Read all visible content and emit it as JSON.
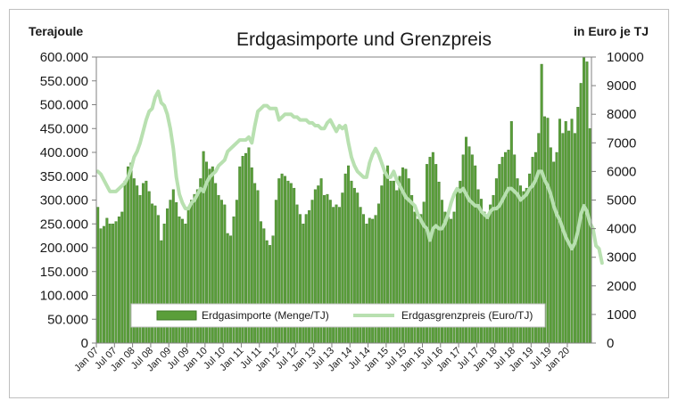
{
  "chart_data": {
    "type": "bar",
    "title": "Erdgasimporte und Grenzpreis",
    "ylabel_left": "Terajoule",
    "ylabel_right": "in Euro je TJ",
    "ylim_left": [
      0,
      600000
    ],
    "ylim_right": [
      0,
      10000
    ],
    "y_ticks_left": [
      "0",
      "50.000",
      "100.000",
      "150.000",
      "200.000",
      "250.000",
      "300.000",
      "350.000",
      "400.000",
      "450.000",
      "500.000",
      "550.000",
      "600.000"
    ],
    "y_ticks_right": [
      "0",
      "1000",
      "2000",
      "3000",
      "4000",
      "5000",
      "6000",
      "7000",
      "8000",
      "9000",
      "10000"
    ],
    "x_tick_labels": [
      "Jan 07",
      "Jul 07",
      "Jan 08",
      "Jul 08",
      "Jan 09",
      "Jul 09",
      "Jan 10",
      "Jul 10",
      "Jan 11",
      "Jul 11",
      "Jan 12",
      "Jul 12",
      "Jan 13",
      "Jul 13",
      "Jan 14",
      "Jul 14",
      "Jan 15",
      "Jul 15",
      "Jan 16",
      "Jul 16",
      "Jan 17",
      "Jul 17",
      "Jan 18",
      "Jul 18",
      "Jan 19",
      "Jul 19",
      "Jan 20"
    ],
    "legend_position": "bottom-inside",
    "grid": false,
    "colors": {
      "bars": "#5a9e3a",
      "bar_edge": "#3f7a28",
      "line": "#b8e0b0"
    },
    "series": [
      {
        "name": "Erdgasimporte (Menge/TJ)",
        "type": "bar",
        "axis": "left",
        "values": [
          285000,
          240000,
          245000,
          262000,
          250000,
          250000,
          255000,
          265000,
          275000,
          340000,
          370000,
          378000,
          345000,
          330000,
          310000,
          335000,
          340000,
          318000,
          292000,
          288000,
          268000,
          215000,
          250000,
          282000,
          300000,
          322000,
          295000,
          265000,
          260000,
          250000,
          285000,
          300000,
          312000,
          322000,
          345000,
          402000,
          380000,
          365000,
          370000,
          335000,
          310000,
          300000,
          290000,
          230000,
          225000,
          265000,
          300000,
          370000,
          392000,
          398000,
          410000,
          368000,
          335000,
          320000,
          255000,
          240000,
          215000,
          205000,
          225000,
          300000,
          345000,
          355000,
          350000,
          340000,
          335000,
          325000,
          290000,
          270000,
          250000,
          270000,
          278000,
          300000,
          322000,
          330000,
          345000,
          310000,
          312000,
          300000,
          285000,
          290000,
          285000,
          315000,
          355000,
          372000,
          340000,
          325000,
          315000,
          285000,
          270000,
          250000,
          262000,
          260000,
          268000,
          292000,
          330000,
          355000,
          372000,
          340000,
          340000,
          320000,
          350000,
          368000,
          365000,
          345000,
          310000,
          275000,
          260000,
          270000,
          296000,
          375000,
          390000,
          400000,
          375000,
          338000,
          300000,
          275000,
          265000,
          260000,
          275000,
          320000,
          340000,
          395000,
          432000,
          412000,
          395000,
          372000,
          322000,
          302000,
          275000,
          260000,
          290000,
          310000,
          345000,
          375000,
          390000,
          400000,
          405000,
          465000,
          395000,
          345000,
          330000,
          318000,
          325000,
          355000,
          390000,
          400000,
          440000,
          585000,
          475000,
          472000,
          410000,
          380000,
          400000,
          470000,
          440000,
          465000,
          445000,
          470000,
          440000,
          495000,
          545000,
          600000,
          590000,
          450000
        ]
      },
      {
        "name": "Erdgasgrenzpreis (Euro/TJ)",
        "type": "line",
        "axis": "right",
        "values": [
          6000,
          5900,
          5700,
          5500,
          5300,
          5300,
          5300,
          5400,
          5500,
          5600,
          5800,
          6100,
          6500,
          6700,
          7000,
          7400,
          7800,
          8100,
          8200,
          8600,
          8800,
          8400,
          8300,
          8000,
          7500,
          6800,
          5800,
          5200,
          4900,
          4700,
          4700,
          4900,
          5000,
          5200,
          5400,
          5300,
          5600,
          5800,
          5900,
          6000,
          6200,
          6300,
          6400,
          6700,
          6800,
          6900,
          7000,
          7100,
          7100,
          7100,
          7200,
          7000,
          7600,
          8100,
          8200,
          8300,
          8300,
          8200,
          8200,
          8200,
          7800,
          7900,
          8000,
          8000,
          8000,
          7900,
          7900,
          7800,
          7800,
          7800,
          7700,
          7700,
          7600,
          7600,
          7500,
          7500,
          7700,
          7800,
          7600,
          7400,
          7600,
          7500,
          7600,
          7000,
          6500,
          6200,
          6000,
          5900,
          5800,
          5800,
          6300,
          6600,
          6800,
          6600,
          6300,
          6000,
          5800,
          5800,
          6000,
          5700,
          5500,
          5300,
          5100,
          5000,
          4900,
          4800,
          4500,
          4300,
          4100,
          4000,
          3600,
          4000,
          4100,
          4000,
          4000,
          4200,
          4500,
          4900,
          5200,
          5400,
          5300,
          5400,
          5200,
          5000,
          4900,
          4800,
          4800,
          4600,
          4500,
          4400,
          4600,
          4700,
          4700,
          4800,
          5000,
          5200,
          5400,
          5400,
          5300,
          5200,
          5000,
          5100,
          5200,
          5400,
          5500,
          5700,
          6000,
          6000,
          5700,
          5500,
          5200,
          4800,
          4500,
          4300,
          4000,
          3700,
          3500,
          3300,
          3500,
          3900,
          4500,
          4800,
          4600,
          4200,
          4000,
          3400,
          3300,
          2800
        ]
      }
    ]
  }
}
